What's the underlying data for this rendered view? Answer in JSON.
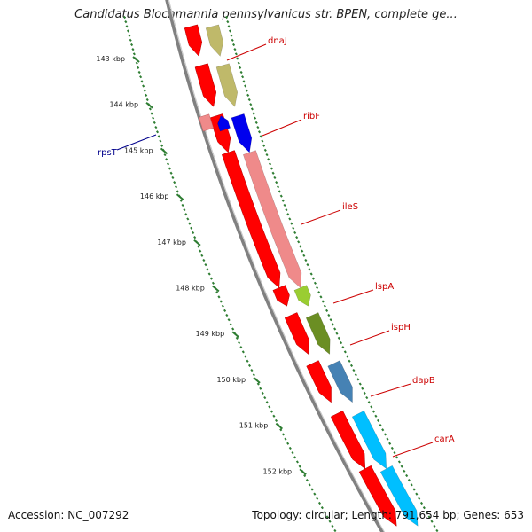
{
  "title": "Candidatus Blochmannia pennsylvanicus str. BPEN, complete ge...",
  "footer": {
    "accession": "Accession: NC_007292",
    "summary": "Topology: circular; Length: 791,654 bp; Genes: 653"
  },
  "axis": {
    "ticks": [
      {
        "label": "143 kbp",
        "kbp": 143
      },
      {
        "label": "144 kbp",
        "kbp": 144
      },
      {
        "label": "145 kbp",
        "kbp": 145
      },
      {
        "label": "146 kbp",
        "kbp": 146
      },
      {
        "label": "147 kbp",
        "kbp": 147
      },
      {
        "label": "148 kbp",
        "kbp": 148
      },
      {
        "label": "149 kbp",
        "kbp": 149
      },
      {
        "label": "150 kbp",
        "kbp": 150
      },
      {
        "label": "151 kbp",
        "kbp": 151
      },
      {
        "label": "152 kbp",
        "kbp": 152
      }
    ]
  },
  "genes": [
    {
      "label": "",
      "kbp_start": 142.3,
      "kbp_end": 142.95,
      "strand": "+",
      "color": "#bfb96a"
    },
    {
      "label": "dnaJ",
      "kbp_start": 143.15,
      "kbp_end": 144.05,
      "strand": "+",
      "color": "#bfb96a",
      "label_color": "#cc0000"
    },
    {
      "label": "ribF",
      "kbp_start": 144.25,
      "kbp_end": 145.05,
      "strand": "+",
      "color": "#0000ee",
      "label_color": "#cc0000"
    },
    {
      "label": "ileS",
      "kbp_start": 145.05,
      "kbp_end": 148.0,
      "strand": "+",
      "color": "#ef8a8a",
      "label_color": "#cc0000"
    },
    {
      "label": "lspA",
      "kbp_start": 148.0,
      "kbp_end": 148.4,
      "strand": "+",
      "color": "#9acd32",
      "label_color": "#cc0000"
    },
    {
      "label": "ispH",
      "kbp_start": 148.6,
      "kbp_end": 149.45,
      "strand": "+",
      "color": "#6b8e23",
      "label_color": "#cc0000"
    },
    {
      "label": "dapB",
      "kbp_start": 149.65,
      "kbp_end": 150.5,
      "strand": "+",
      "color": "#4682b4",
      "label_color": "#cc0000"
    },
    {
      "label": "carA",
      "kbp_start": 150.75,
      "kbp_end": 151.95,
      "strand": "+",
      "color": "#00bfff",
      "label_color": "#cc0000"
    },
    {
      "label": "",
      "kbp_start": 151.95,
      "kbp_end": 153.2,
      "strand": "+",
      "color": "#00bfff"
    },
    {
      "label": "rpsT",
      "kbp_start": 144.25,
      "kbp_end": 144.55,
      "strand": "-",
      "color": "#0000ee",
      "label_color": "#00008b"
    }
  ],
  "colors": {
    "cds": "#ff0000",
    "backbone": "#808080",
    "tick_major": "#2e7d32",
    "tick_minor": "#2e7d32"
  }
}
